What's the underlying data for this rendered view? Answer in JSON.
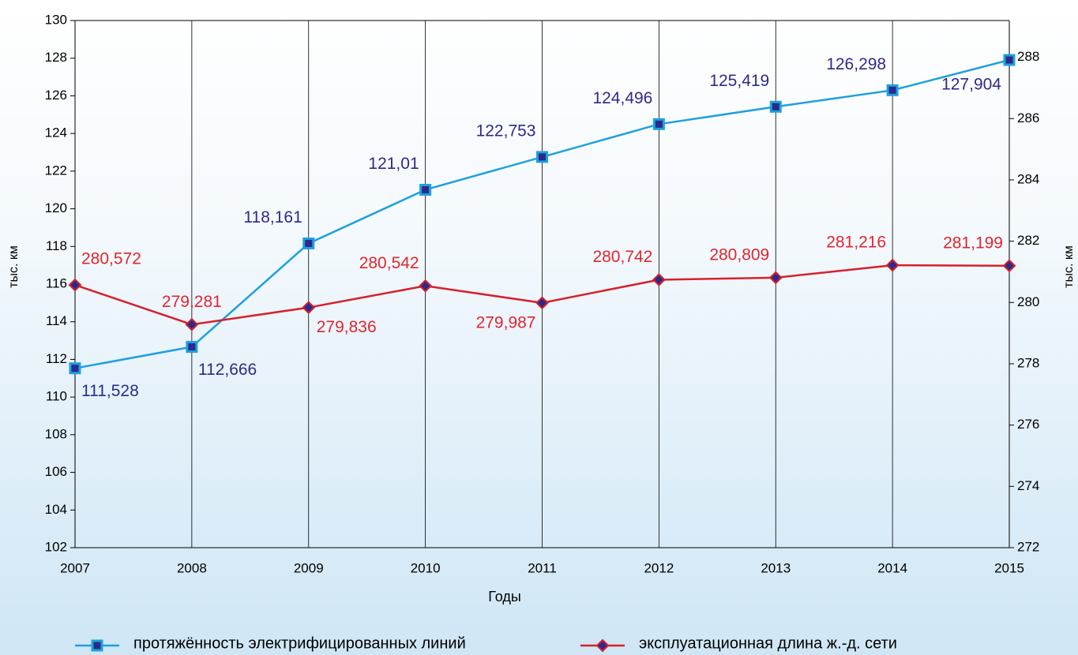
{
  "chart_data": {
    "type": "line",
    "categories": [
      "2007",
      "2008",
      "2009",
      "2010",
      "2011",
      "2012",
      "2013",
      "2014",
      "2015"
    ],
    "x_label": "Годы",
    "y_label": "тыс. км",
    "y2_label": "тыс. км",
    "ylim": [
      102,
      130
    ],
    "yticks": [
      102,
      104,
      106,
      108,
      110,
      112,
      114,
      116,
      118,
      120,
      122,
      124,
      126,
      128,
      130
    ],
    "y2lim": [
      272,
      289.2
    ],
    "y2ticks": [
      272,
      274,
      276,
      278,
      280,
      282,
      284,
      286,
      288
    ],
    "grid": true,
    "legend": "bottom",
    "series": [
      {
        "name": "протяжённость электрифицированных линий",
        "color": "#1ea0dc",
        "marker_color": "#2b2a8c",
        "marker": "square",
        "values": [
          111.528,
          112.666,
          118.161,
          121.01,
          122.753,
          124.496,
          125.419,
          126.298,
          127.904
        ],
        "value_labels": [
          "111,528",
          "112,666",
          "118,161",
          "121,01",
          "122,753",
          "124,496",
          "125,419",
          "126,298",
          "127,904"
        ],
        "label_color": "#2e2a8a"
      },
      {
        "name": "эксплуатационная длина ж.-д. сети",
        "color": "#d7202a",
        "marker_color": "#2b2a8c",
        "marker": "diamond",
        "axis": "y2",
        "values": [
          280.572,
          279.281,
          279.836,
          280.542,
          279.987,
          280.742,
          280.809,
          281.216,
          281.199
        ],
        "value_labels": [
          "280,572",
          "279,281",
          "279,836",
          "280,542",
          "279,987",
          "280,742",
          "280,809",
          "281,216",
          "281,199"
        ],
        "label_color": "#e0262e"
      }
    ]
  }
}
